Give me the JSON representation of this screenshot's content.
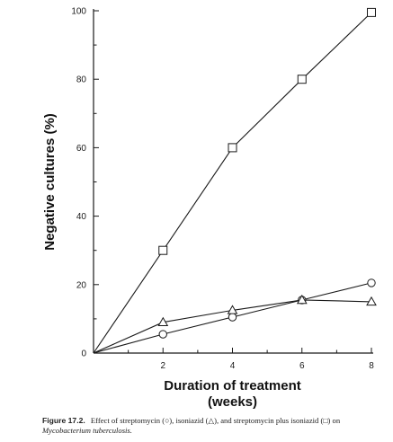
{
  "chart_data": {
    "type": "line",
    "xlabel": [
      "Duration of treatment",
      "(weeks)"
    ],
    "ylabel": "Negative cultures (%)",
    "xlim": [
      0,
      8
    ],
    "ylim": [
      0,
      100
    ],
    "xticks_labeled": [
      2,
      4,
      6,
      8
    ],
    "yticks_labeled": [
      0,
      20,
      40,
      60,
      80,
      100
    ],
    "grid": false,
    "series": [
      {
        "marker": "circle",
        "x": [
          0,
          2,
          4,
          6,
          8
        ],
        "y": [
          0,
          5.5,
          10.5,
          15.5,
          20.5
        ]
      },
      {
        "marker": "triangle",
        "x": [
          0,
          2,
          4,
          6,
          8
        ],
        "y": [
          0,
          9,
          12.5,
          15.5,
          15
        ]
      },
      {
        "marker": "square",
        "x": [
          0,
          2,
          4,
          6,
          8
        ],
        "y": [
          0,
          30,
          60,
          80,
          99.5
        ]
      }
    ]
  },
  "caption": {
    "label": "Figure 17.2.",
    "text": "Effect of streptomycin (○), isoniazid (△), and streptomycin plus isoniazid (□) on",
    "organism": "Mycobacterium tuberculosis."
  }
}
